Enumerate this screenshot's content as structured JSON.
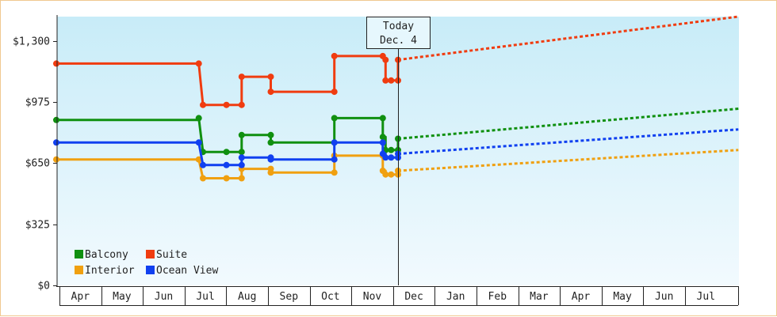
{
  "chart_data": {
    "type": "line",
    "title": "",
    "xlabel": "",
    "ylabel": "",
    "ylim": [
      0,
      1430
    ],
    "yticks": [
      {
        "value": 0,
        "label": "$0"
      },
      {
        "value": 325,
        "label": "$325"
      },
      {
        "value": 650,
        "label": "$650"
      },
      {
        "value": 975,
        "label": "$975"
      },
      {
        "value": 1300,
        "label": "$1,300"
      }
    ],
    "months": [
      "Apr",
      "May",
      "Jun",
      "Jul",
      "Aug",
      "Sep",
      "Oct",
      "Nov",
      "Dec",
      "Jan",
      "Feb",
      "Mar",
      "Apr",
      "May",
      "Jun",
      "Jul"
    ],
    "x_unit": "days from Apr 1",
    "today": {
      "label_line1": "Today",
      "label_line2": "Dec. 4",
      "x": 247
    },
    "legend": {
      "position": "bottom-left"
    },
    "colors": {
      "Balcony": "#109010",
      "Suite": "#f03c10",
      "Interior": "#f0a010",
      "Ocean View": "#1040f0"
    },
    "series": [
      {
        "name": "Balcony",
        "history": [
          [
            0,
            880
          ],
          [
            103,
            880
          ],
          [
            103,
            890
          ],
          [
            106,
            710
          ],
          [
            123,
            710
          ],
          [
            134,
            710
          ],
          [
            134,
            800
          ],
          [
            155,
            800
          ],
          [
            155,
            760
          ],
          [
            201,
            760
          ],
          [
            201,
            890
          ],
          [
            236,
            890
          ],
          [
            236,
            790
          ],
          [
            238,
            790
          ],
          [
            238,
            720
          ],
          [
            242,
            720
          ],
          [
            242,
            720
          ],
          [
            247,
            720
          ],
          [
            247,
            780
          ]
        ],
        "points": [
          [
            0,
            880
          ],
          [
            103,
            890
          ],
          [
            106,
            710
          ],
          [
            123,
            710
          ],
          [
            134,
            710
          ],
          [
            134,
            800
          ],
          [
            155,
            800
          ],
          [
            155,
            760
          ],
          [
            201,
            760
          ],
          [
            201,
            890
          ],
          [
            236,
            890
          ],
          [
            236,
            790
          ],
          [
            238,
            720
          ],
          [
            242,
            720
          ],
          [
            247,
            720
          ],
          [
            247,
            780
          ]
        ],
        "forecast": [
          [
            247,
            780
          ],
          [
            493,
            940
          ]
        ]
      },
      {
        "name": "Suite",
        "history": [
          [
            0,
            1180
          ],
          [
            103,
            1180
          ],
          [
            103,
            1180
          ],
          [
            106,
            960
          ],
          [
            123,
            960
          ],
          [
            134,
            960
          ],
          [
            134,
            1110
          ],
          [
            155,
            1110
          ],
          [
            155,
            1030
          ],
          [
            201,
            1030
          ],
          [
            201,
            1220
          ],
          [
            236,
            1220
          ],
          [
            236,
            1210
          ],
          [
            238,
            1200
          ],
          [
            238,
            1090
          ],
          [
            242,
            1090
          ],
          [
            242,
            1090
          ],
          [
            247,
            1090
          ],
          [
            247,
            1200
          ]
        ],
        "points": [
          [
            0,
            1180
          ],
          [
            103,
            1180
          ],
          [
            106,
            960
          ],
          [
            123,
            960
          ],
          [
            134,
            960
          ],
          [
            134,
            1110
          ],
          [
            155,
            1110
          ],
          [
            155,
            1030
          ],
          [
            201,
            1030
          ],
          [
            201,
            1220
          ],
          [
            236,
            1220
          ],
          [
            238,
            1200
          ],
          [
            238,
            1090
          ],
          [
            242,
            1090
          ],
          [
            247,
            1090
          ],
          [
            247,
            1200
          ]
        ],
        "forecast": [
          [
            247,
            1200
          ],
          [
            493,
            1430
          ]
        ]
      },
      {
        "name": "Interior",
        "history": [
          [
            0,
            670
          ],
          [
            103,
            670
          ],
          [
            103,
            670
          ],
          [
            106,
            570
          ],
          [
            123,
            570
          ],
          [
            134,
            570
          ],
          [
            134,
            620
          ],
          [
            155,
            620
          ],
          [
            155,
            600
          ],
          [
            201,
            600
          ],
          [
            201,
            690
          ],
          [
            236,
            690
          ],
          [
            236,
            610
          ],
          [
            238,
            610
          ],
          [
            238,
            590
          ],
          [
            242,
            590
          ],
          [
            242,
            590
          ],
          [
            247,
            590
          ],
          [
            247,
            610
          ]
        ],
        "points": [
          [
            0,
            670
          ],
          [
            103,
            670
          ],
          [
            106,
            570
          ],
          [
            123,
            570
          ],
          [
            134,
            570
          ],
          [
            134,
            620
          ],
          [
            155,
            620
          ],
          [
            155,
            600
          ],
          [
            201,
            600
          ],
          [
            201,
            690
          ],
          [
            236,
            690
          ],
          [
            236,
            610
          ],
          [
            238,
            590
          ],
          [
            242,
            590
          ],
          [
            247,
            590
          ],
          [
            247,
            610
          ]
        ],
        "forecast": [
          [
            247,
            610
          ],
          [
            493,
            720
          ]
        ]
      },
      {
        "name": "Ocean View",
        "history": [
          [
            0,
            760
          ],
          [
            103,
            760
          ],
          [
            103,
            760
          ],
          [
            106,
            640
          ],
          [
            123,
            640
          ],
          [
            134,
            640
          ],
          [
            134,
            680
          ],
          [
            155,
            680
          ],
          [
            155,
            670
          ],
          [
            201,
            670
          ],
          [
            201,
            760
          ],
          [
            236,
            760
          ],
          [
            236,
            700
          ],
          [
            238,
            700
          ],
          [
            238,
            680
          ],
          [
            242,
            680
          ],
          [
            242,
            680
          ],
          [
            247,
            680
          ],
          [
            247,
            700
          ]
        ],
        "points": [
          [
            0,
            760
          ],
          [
            103,
            760
          ],
          [
            106,
            640
          ],
          [
            123,
            640
          ],
          [
            134,
            640
          ],
          [
            134,
            680
          ],
          [
            155,
            680
          ],
          [
            155,
            670
          ],
          [
            201,
            670
          ],
          [
            201,
            760
          ],
          [
            236,
            760
          ],
          [
            236,
            700
          ],
          [
            238,
            680
          ],
          [
            242,
            680
          ],
          [
            247,
            680
          ],
          [
            247,
            700
          ]
        ],
        "forecast": [
          [
            247,
            700
          ],
          [
            493,
            830
          ]
        ]
      }
    ]
  }
}
